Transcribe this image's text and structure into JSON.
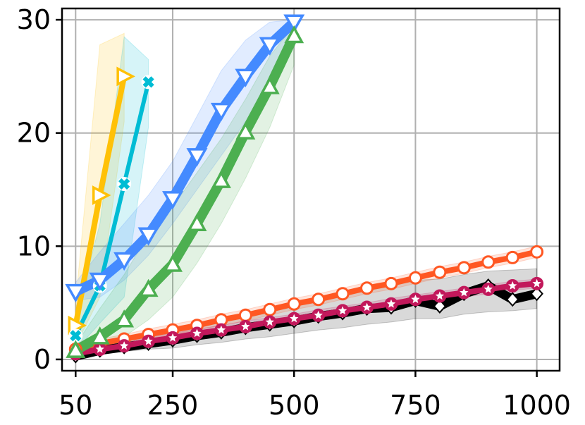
{
  "chart_data": {
    "type": "line",
    "title": "",
    "xlabel": "",
    "ylabel": "",
    "xlim": [
      22,
      1047
    ],
    "ylim": [
      -1,
      31
    ],
    "grid": true,
    "legend": "none",
    "x_ticks": [
      {
        "value": 50,
        "label": "50"
      },
      {
        "value": 250,
        "label": "250"
      },
      {
        "value": 500,
        "label": "500"
      },
      {
        "value": 750,
        "label": "750"
      },
      {
        "value": 1000,
        "label": "1000"
      }
    ],
    "y_ticks": [
      {
        "value": 0,
        "label": "0"
      },
      {
        "value": 10,
        "label": "10"
      },
      {
        "value": 20,
        "label": "20"
      },
      {
        "value": 30,
        "label": "30"
      }
    ],
    "series": [
      {
        "color": "#000000",
        "marker": "diamond",
        "width": 13,
        "x": [
          50,
          100,
          150,
          200,
          250,
          300,
          350,
          400,
          450,
          500,
          550,
          600,
          650,
          700,
          750,
          800,
          850,
          900,
          950,
          1000
        ],
        "y": [
          0.3,
          0.8,
          1.1,
          1.4,
          1.7,
          2.1,
          2.4,
          2.8,
          3.1,
          3.4,
          3.8,
          4.1,
          4.5,
          4.6,
          5.2,
          4.7,
          5.8,
          6.5,
          5.3,
          5.8
        ],
        "band_upper": [
          0.6,
          1.2,
          1.6,
          2.1,
          2.5,
          3.0,
          3.4,
          3.9,
          4.3,
          4.8,
          5.2,
          5.6,
          6.1,
          6.5,
          7.0,
          7.1,
          7.5,
          7.8,
          7.9,
          8.0
        ],
        "band_lower": [
          0.0,
          0.5,
          0.7,
          0.9,
          1.0,
          1.3,
          1.5,
          1.8,
          2.0,
          2.3,
          2.6,
          2.8,
          3.1,
          3.3,
          3.6,
          3.6,
          4.0,
          4.2,
          4.3,
          4.5
        ]
      },
      {
        "color": "#ff5722",
        "marker": "circle",
        "width": 8,
        "x": [
          50,
          100,
          150,
          200,
          250,
          300,
          350,
          400,
          450,
          500,
          550,
          600,
          650,
          700,
          750,
          800,
          850,
          900,
          950,
          1000
        ],
        "y": [
          0.9,
          1.4,
          1.8,
          2.2,
          2.6,
          3.0,
          3.5,
          3.9,
          4.4,
          4.9,
          5.3,
          5.8,
          6.3,
          6.7,
          7.2,
          7.7,
          8.1,
          8.6,
          9.0,
          9.5
        ],
        "band_upper": [
          1.3,
          1.8,
          2.2,
          2.7,
          3.1,
          3.5,
          4.0,
          4.4,
          4.9,
          5.4,
          5.8,
          6.3,
          6.8,
          7.2,
          7.7,
          8.2,
          8.6,
          9.1,
          9.5,
          10.0
        ],
        "band_lower": [
          0.5,
          1.0,
          1.4,
          1.8,
          2.2,
          2.6,
          3.0,
          3.4,
          3.9,
          4.4,
          4.8,
          5.3,
          5.8,
          6.2,
          6.7,
          7.2,
          7.6,
          8.1,
          8.5,
          9.0
        ]
      },
      {
        "color": "#c2185b",
        "marker": "star",
        "width": 8,
        "x": [
          50,
          100,
          150,
          200,
          250,
          300,
          350,
          400,
          450,
          500,
          550,
          600,
          650,
          700,
          750,
          800,
          850,
          900,
          950,
          1000
        ],
        "y": [
          0.5,
          0.9,
          1.2,
          1.6,
          1.9,
          2.3,
          2.6,
          2.9,
          3.3,
          3.6,
          3.9,
          4.3,
          4.6,
          4.9,
          5.3,
          5.6,
          5.9,
          6.2,
          6.5,
          6.7
        ],
        "band_upper": [
          0.8,
          1.2,
          1.6,
          2.0,
          2.3,
          2.7,
          3.0,
          3.4,
          3.7,
          4.0,
          4.4,
          4.7,
          5.0,
          5.4,
          5.7,
          6.0,
          6.3,
          6.6,
          6.9,
          7.1
        ],
        "band_lower": [
          0.2,
          0.6,
          0.9,
          1.2,
          1.5,
          1.9,
          2.2,
          2.5,
          2.9,
          3.2,
          3.5,
          3.9,
          4.2,
          4.5,
          4.9,
          5.2,
          5.5,
          5.8,
          6.1,
          6.3
        ]
      },
      {
        "color": "#ffc107",
        "marker": "triangle-right",
        "width": 8,
        "x": [
          50,
          100,
          150
        ],
        "y": [
          3.0,
          14.5,
          25.0
        ],
        "band_upper": [
          5.0,
          27.8,
          28.8
        ],
        "band_lower": [
          1.2,
          5.5,
          21.0
        ]
      },
      {
        "color": "#00bcd4",
        "marker": "x",
        "width": 6,
        "x": [
          50,
          100,
          150,
          200
        ],
        "y": [
          2.1,
          6.5,
          15.5,
          24.5
        ],
        "band_upper": [
          3.6,
          12.0,
          28.5,
          26.5
        ],
        "band_lower": [
          0.8,
          3.2,
          5.5,
          20.5
        ]
      },
      {
        "color": "#448aff",
        "marker": "triangle-down",
        "width": 14,
        "x": [
          50,
          100,
          150,
          200,
          250,
          300,
          350,
          400,
          450,
          500
        ],
        "y": [
          6.0,
          7.0,
          8.8,
          11.0,
          14.2,
          18.0,
          22.0,
          25.0,
          27.8,
          29.8
        ],
        "band_upper": [
          6.8,
          9.5,
          12.0,
          14.5,
          17.5,
          21.5,
          25.5,
          28.2,
          29.8,
          30.0
        ],
        "band_lower": [
          5.2,
          5.5,
          7.0,
          9.2,
          12.0,
          15.0,
          18.0,
          21.0,
          24.5,
          28.5
        ]
      },
      {
        "color": "#4caf50",
        "marker": "triangle-up",
        "width": 14,
        "x": [
          50,
          100,
          150,
          200,
          250,
          300,
          350,
          400,
          450,
          500
        ],
        "y": [
          0.8,
          2.0,
          3.5,
          6.2,
          8.4,
          12.0,
          15.8,
          20.1,
          24.1,
          28.6
        ],
        "band_upper": [
          1.3,
          4.5,
          7.5,
          11.0,
          13.5,
          16.5,
          19.5,
          23.0,
          26.8,
          29.5
        ],
        "band_lower": [
          0.3,
          1.0,
          2.0,
          3.5,
          5.5,
          8.5,
          12.0,
          16.0,
          20.5,
          26.0
        ]
      }
    ]
  }
}
